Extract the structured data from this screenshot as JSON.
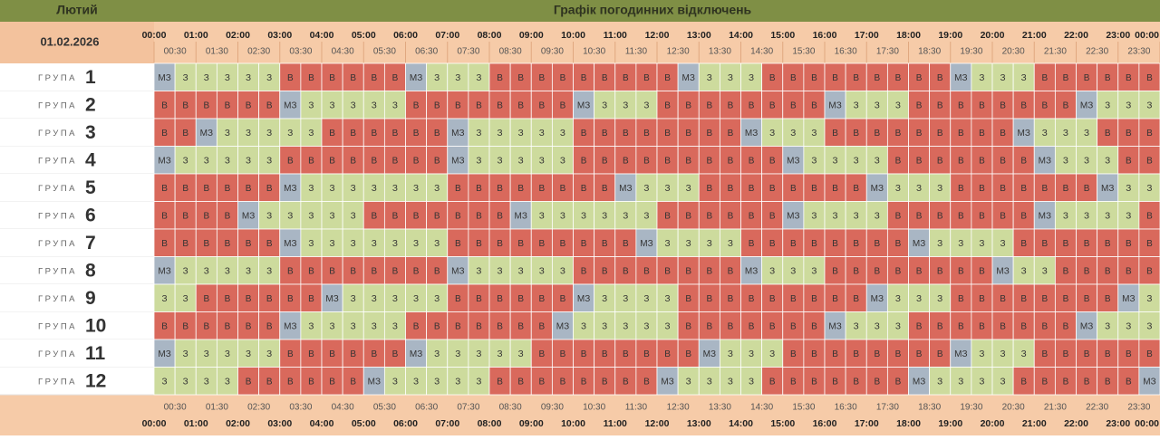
{
  "header": {
    "month": "Лютий",
    "title": "Графік погодинних відключень",
    "date": "01.02.2026"
  },
  "hours": [
    "00:00",
    "01:00",
    "02:00",
    "03:00",
    "04:00",
    "05:00",
    "06:00",
    "07:00",
    "08:00",
    "09:00",
    "10:00",
    "11:00",
    "12:00",
    "13:00",
    "14:00",
    "15:00",
    "16:00",
    "17:00",
    "18:00",
    "19:00",
    "20:00",
    "21:00",
    "22:00",
    "23:00",
    "00:00"
  ],
  "half_hours": [
    "00:30",
    "01:30",
    "02:30",
    "03:30",
    "04:30",
    "05:30",
    "06:30",
    "07:30",
    "08:30",
    "09:30",
    "10:30",
    "11:30",
    "12:30",
    "13:30",
    "14:30",
    "15:30",
    "16:30",
    "17:30",
    "18:30",
    "19:30",
    "20:30",
    "21:30",
    "22:30",
    "23:30"
  ],
  "cell_colors": {
    "В": "#d9695c",
    "З": "#cddb9d",
    "МЗ": "#a9b6c4"
  },
  "groups": [
    {
      "label": "ГРУПА",
      "number": "1",
      "cells": [
        "МЗ",
        "З",
        "З",
        "З",
        "З",
        "З",
        "В",
        "В",
        "В",
        "В",
        "В",
        "В",
        "МЗ",
        "З",
        "З",
        "З",
        "В",
        "В",
        "В",
        "В",
        "В",
        "В",
        "В",
        "В",
        "В",
        "МЗ",
        "З",
        "З",
        "З",
        "В",
        "В",
        "В",
        "В",
        "В",
        "В",
        "В",
        "В",
        "В",
        "МЗ",
        "З",
        "З",
        "З",
        "В",
        "В",
        "В",
        "В",
        "В",
        "В"
      ]
    },
    {
      "label": "ГРУПА",
      "number": "2",
      "cells": [
        "В",
        "В",
        "В",
        "В",
        "В",
        "В",
        "МЗ",
        "З",
        "З",
        "З",
        "З",
        "З",
        "В",
        "В",
        "В",
        "В",
        "В",
        "В",
        "В",
        "В",
        "МЗ",
        "З",
        "З",
        "З",
        "В",
        "В",
        "В",
        "В",
        "В",
        "В",
        "В",
        "В",
        "МЗ",
        "З",
        "З",
        "З",
        "В",
        "В",
        "В",
        "В",
        "В",
        "В",
        "В",
        "В",
        "МЗ",
        "З",
        "З",
        "З"
      ]
    },
    {
      "label": "ГРУПА",
      "number": "3",
      "cells": [
        "В",
        "В",
        "МЗ",
        "З",
        "З",
        "З",
        "З",
        "З",
        "В",
        "В",
        "В",
        "В",
        "В",
        "В",
        "МЗ",
        "З",
        "З",
        "З",
        "З",
        "З",
        "В",
        "В",
        "В",
        "В",
        "В",
        "В",
        "В",
        "В",
        "МЗ",
        "З",
        "З",
        "З",
        "В",
        "В",
        "В",
        "В",
        "В",
        "В",
        "В",
        "В",
        "В",
        "МЗ",
        "З",
        "З",
        "З",
        "В",
        "В",
        "В"
      ]
    },
    {
      "label": "ГРУПА",
      "number": "4",
      "cells": [
        "МЗ",
        "З",
        "З",
        "З",
        "З",
        "З",
        "В",
        "В",
        "В",
        "В",
        "В",
        "В",
        "В",
        "В",
        "МЗ",
        "З",
        "З",
        "З",
        "З",
        "З",
        "В",
        "В",
        "В",
        "В",
        "В",
        "В",
        "В",
        "В",
        "В",
        "В",
        "МЗ",
        "З",
        "З",
        "З",
        "З",
        "В",
        "В",
        "В",
        "В",
        "В",
        "В",
        "В",
        "МЗ",
        "З",
        "З",
        "З",
        "В",
        "В"
      ]
    },
    {
      "label": "ГРУПА",
      "number": "5",
      "cells": [
        "В",
        "В",
        "В",
        "В",
        "В",
        "В",
        "МЗ",
        "З",
        "З",
        "З",
        "З",
        "З",
        "З",
        "З",
        "В",
        "В",
        "В",
        "В",
        "В",
        "В",
        "В",
        "В",
        "МЗ",
        "З",
        "З",
        "З",
        "В",
        "В",
        "В",
        "В",
        "В",
        "В",
        "В",
        "В",
        "МЗ",
        "З",
        "З",
        "З",
        "В",
        "В",
        "В",
        "В",
        "В",
        "В",
        "В",
        "МЗ",
        "З",
        "З"
      ]
    },
    {
      "label": "ГРУПА",
      "number": "6",
      "cells": [
        "В",
        "В",
        "В",
        "В",
        "МЗ",
        "З",
        "З",
        "З",
        "З",
        "З",
        "В",
        "В",
        "В",
        "В",
        "В",
        "В",
        "В",
        "МЗ",
        "З",
        "З",
        "З",
        "З",
        "З",
        "З",
        "В",
        "В",
        "В",
        "В",
        "В",
        "В",
        "МЗ",
        "З",
        "З",
        "З",
        "З",
        "В",
        "В",
        "В",
        "В",
        "В",
        "В",
        "В",
        "МЗ",
        "З",
        "З",
        "З",
        "З",
        "В"
      ]
    },
    {
      "label": "ГРУПА",
      "number": "7",
      "cells": [
        "В",
        "В",
        "В",
        "В",
        "В",
        "В",
        "МЗ",
        "З",
        "З",
        "З",
        "З",
        "З",
        "З",
        "З",
        "В",
        "В",
        "В",
        "В",
        "В",
        "В",
        "В",
        "В",
        "В",
        "МЗ",
        "З",
        "З",
        "З",
        "З",
        "В",
        "В",
        "В",
        "В",
        "В",
        "В",
        "В",
        "В",
        "МЗ",
        "З",
        "З",
        "З",
        "З",
        "В",
        "В",
        "В",
        "В",
        "В",
        "В",
        "В"
      ]
    },
    {
      "label": "ГРУПА",
      "number": "8",
      "cells": [
        "МЗ",
        "З",
        "З",
        "З",
        "З",
        "З",
        "В",
        "В",
        "В",
        "В",
        "В",
        "В",
        "В",
        "В",
        "МЗ",
        "З",
        "З",
        "З",
        "З",
        "З",
        "В",
        "В",
        "В",
        "В",
        "В",
        "В",
        "В",
        "В",
        "МЗ",
        "З",
        "З",
        "З",
        "В",
        "В",
        "В",
        "В",
        "В",
        "В",
        "В",
        "В",
        "МЗ",
        "З",
        "З",
        "В",
        "В",
        "В",
        "В",
        "В"
      ]
    },
    {
      "label": "ГРУПА",
      "number": "9",
      "cells": [
        "З",
        "З",
        "В",
        "В",
        "В",
        "В",
        "В",
        "В",
        "МЗ",
        "З",
        "З",
        "З",
        "З",
        "З",
        "В",
        "В",
        "В",
        "В",
        "В",
        "В",
        "МЗ",
        "З",
        "З",
        "З",
        "З",
        "В",
        "В",
        "В",
        "В",
        "В",
        "В",
        "В",
        "В",
        "В",
        "МЗ",
        "З",
        "З",
        "З",
        "В",
        "В",
        "В",
        "В",
        "В",
        "В",
        "В",
        "В",
        "МЗ",
        "З"
      ]
    },
    {
      "label": "ГРУПА",
      "number": "10",
      "cells": [
        "В",
        "В",
        "В",
        "В",
        "В",
        "В",
        "МЗ",
        "З",
        "З",
        "З",
        "З",
        "З",
        "В",
        "В",
        "В",
        "В",
        "В",
        "В",
        "В",
        "МЗ",
        "З",
        "З",
        "З",
        "З",
        "З",
        "В",
        "В",
        "В",
        "В",
        "В",
        "В",
        "В",
        "МЗ",
        "З",
        "З",
        "З",
        "В",
        "В",
        "В",
        "В",
        "В",
        "В",
        "В",
        "В",
        "МЗ",
        "З",
        "З",
        "З"
      ]
    },
    {
      "label": "ГРУПА",
      "number": "11",
      "cells": [
        "МЗ",
        "З",
        "З",
        "З",
        "З",
        "З",
        "В",
        "В",
        "В",
        "В",
        "В",
        "В",
        "МЗ",
        "З",
        "З",
        "З",
        "З",
        "З",
        "В",
        "В",
        "В",
        "В",
        "В",
        "В",
        "В",
        "В",
        "МЗ",
        "З",
        "З",
        "З",
        "В",
        "В",
        "В",
        "В",
        "В",
        "В",
        "В",
        "В",
        "МЗ",
        "З",
        "З",
        "З",
        "В",
        "В",
        "В",
        "В",
        "В",
        "В"
      ]
    },
    {
      "label": "ГРУПА",
      "number": "12",
      "cells": [
        "З",
        "З",
        "З",
        "З",
        "В",
        "В",
        "В",
        "В",
        "В",
        "В",
        "МЗ",
        "З",
        "З",
        "З",
        "З",
        "З",
        "В",
        "В",
        "В",
        "В",
        "В",
        "В",
        "В",
        "В",
        "МЗ",
        "З",
        "З",
        "З",
        "З",
        "В",
        "В",
        "В",
        "В",
        "В",
        "В",
        "В",
        "МЗ",
        "З",
        "З",
        "З",
        "З",
        "В",
        "В",
        "В",
        "В",
        "В",
        "В",
        "МЗ"
      ]
    }
  ]
}
